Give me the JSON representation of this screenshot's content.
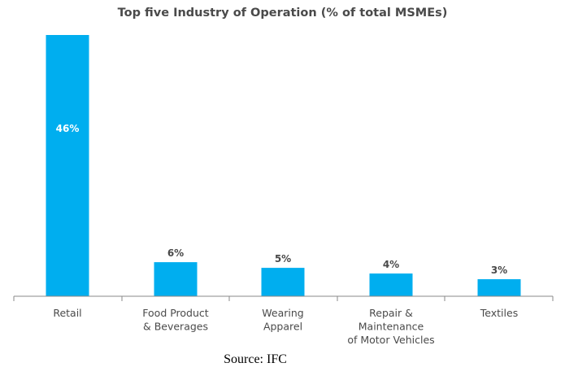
{
  "chart_data": {
    "type": "bar",
    "title": "Top five Industry of Operation (% of total MSMEs)",
    "categories": [
      [
        "Retail"
      ],
      [
        "Food Product",
        "& Beverages"
      ],
      [
        "Wearing",
        "Apparel"
      ],
      [
        "Repair &",
        "Maintenance",
        "of Motor Vehicles"
      ],
      [
        "Textiles"
      ]
    ],
    "values": [
      46,
      6,
      5,
      4,
      3
    ],
    "value_labels": [
      "46%",
      "6%",
      "5%",
      "4%",
      "3%"
    ],
    "ylim": [
      0,
      46
    ],
    "grid": false,
    "bar_color": "#00aeef",
    "label_color": "#4a4a4a"
  },
  "source": "Source: IFC"
}
